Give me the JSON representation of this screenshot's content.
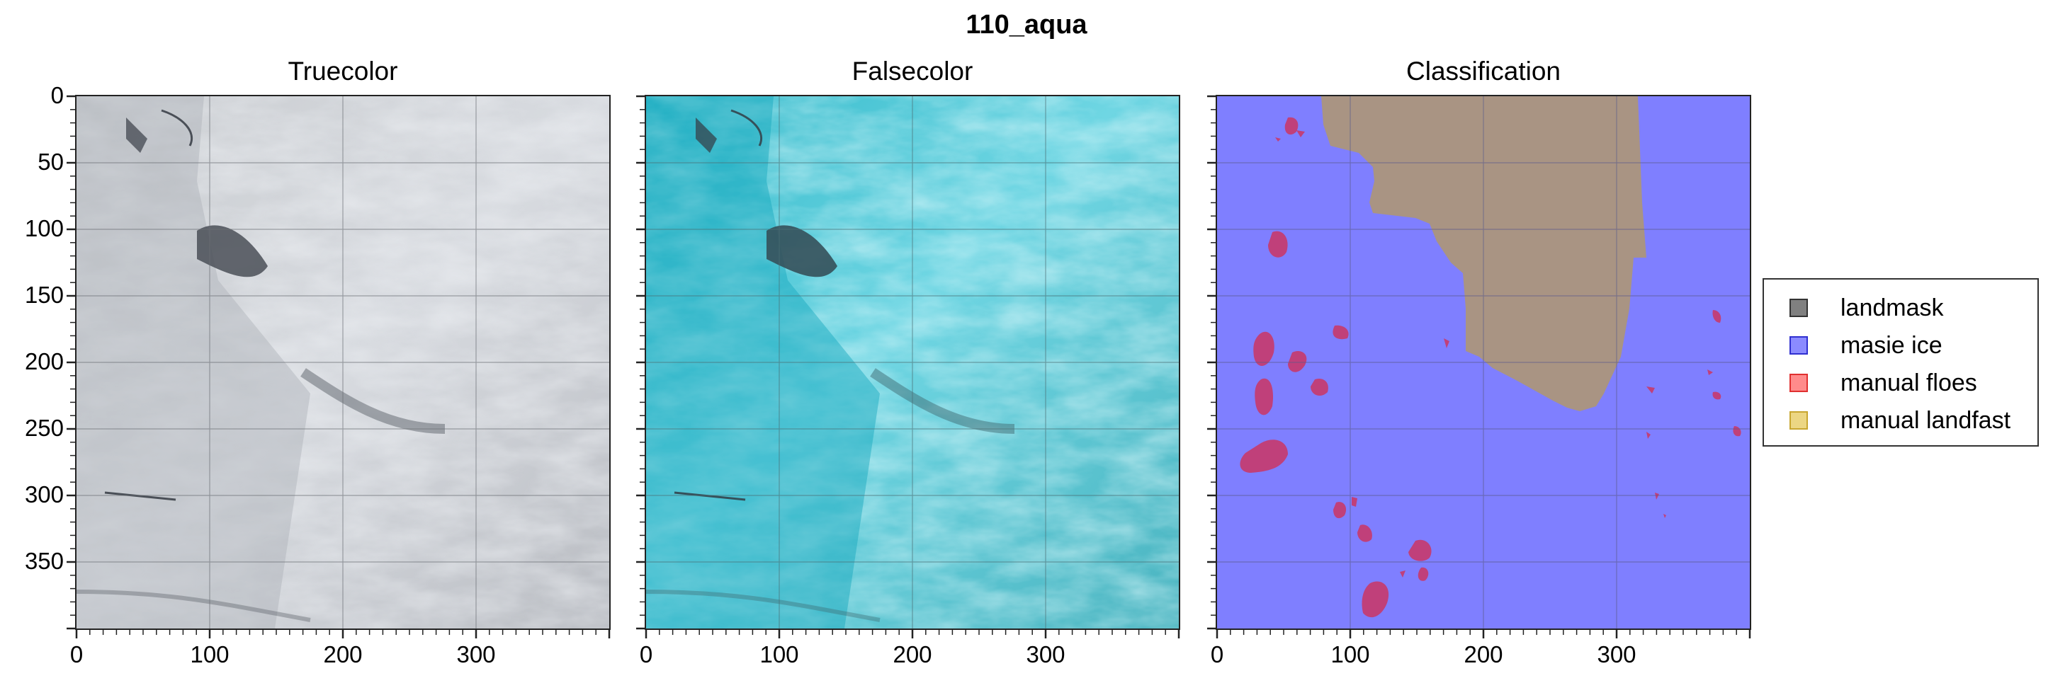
{
  "figure": {
    "title": "110_aqua"
  },
  "panels": [
    {
      "title": "Truecolor"
    },
    {
      "title": "Falsecolor"
    },
    {
      "title": "Classification"
    }
  ],
  "axes": {
    "y_ticks": [
      "0",
      "50",
      "100",
      "150",
      "200",
      "250",
      "300",
      "350"
    ],
    "x_ticks": [
      "0",
      "100",
      "200",
      "300"
    ],
    "x_range": [
      0,
      400
    ],
    "y_range": [
      0,
      400
    ],
    "grid": true
  },
  "legend": {
    "placement": "right",
    "items": [
      {
        "label": "landmask",
        "color": "#555555"
      },
      {
        "label": "masie ice",
        "color": "#5a5aff"
      },
      {
        "label": "manual floes",
        "color": "#ff5a5a"
      },
      {
        "label": "manual landfast",
        "color": "#e6c85a"
      }
    ]
  },
  "colors": {
    "classification_background": "#7f7fff",
    "landmask_fill": "#a99483",
    "floe_fill": "#c0407a"
  }
}
